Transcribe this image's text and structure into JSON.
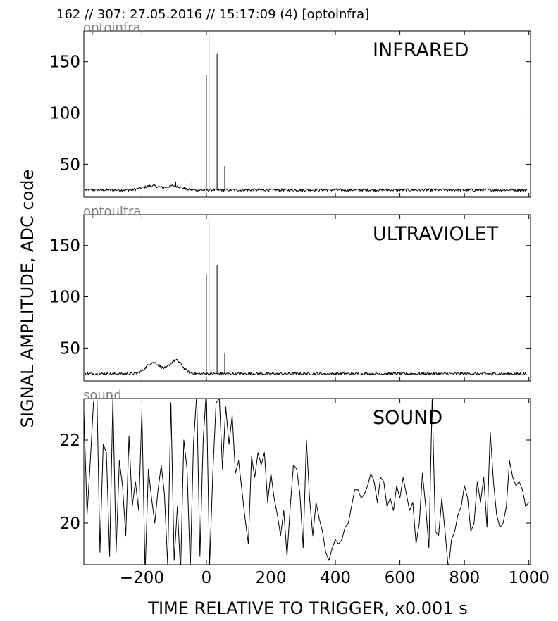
{
  "header": {
    "text": "162 // 307:   27.05.2016 // 15:17:09 (4)  [optoinfra]"
  },
  "colors": {
    "trace": "#000000",
    "panel_tag": "#808080",
    "frame": "#000000"
  },
  "chart_data": {
    "type": "line",
    "xlabel": "TIME RELATIVE TO TRIGGER,   x0.001 s",
    "ylabel": "SIGNAL AMPLITUDE,  ADC code",
    "xlim": [
      -380,
      1005
    ],
    "xticks": [
      -200,
      0,
      200,
      400,
      600,
      800,
      1000
    ],
    "xtick_labels": [
      "−200",
      "0",
      "200",
      "400",
      "600",
      "800",
      "1000"
    ],
    "grid": false,
    "panels": [
      {
        "tag": "optoinfra",
        "title": "INFRARED",
        "ylim": [
          18,
          180
        ],
        "yticks": [
          50,
          100,
          150
        ],
        "ytick_labels": [
          "50",
          "100",
          "150"
        ],
        "baseline": 25,
        "noise": 1.3,
        "bumps": [
          {
            "center": -170,
            "width": 35,
            "height": 4
          },
          {
            "center": -100,
            "width": 30,
            "height": 4
          }
        ],
        "spikes": [
          {
            "x": -95,
            "y": 33
          },
          {
            "x": -60,
            "y": 33
          },
          {
            "x": -45,
            "y": 33
          },
          {
            "x": 0,
            "y": 137
          },
          {
            "x": 8,
            "y": 177
          },
          {
            "x": 33,
            "y": 158
          },
          {
            "x": 57,
            "y": 48
          }
        ]
      },
      {
        "tag": "optoultra",
        "title": "ULTRAVIOLET",
        "ylim": [
          18,
          180
        ],
        "yticks": [
          50,
          100,
          150
        ],
        "ytick_labels": [
          "50",
          "100",
          "150"
        ],
        "baseline": 25,
        "noise": 1.3,
        "bumps": [
          {
            "center": -165,
            "width": 30,
            "height": 11
          },
          {
            "center": -95,
            "width": 28,
            "height": 13
          }
        ],
        "spikes": [
          {
            "x": 0,
            "y": 122
          },
          {
            "x": 8,
            "y": 175
          },
          {
            "x": 33,
            "y": 131
          },
          {
            "x": 57,
            "y": 45
          }
        ]
      },
      {
        "tag": "sound",
        "title": "SOUND",
        "ylim": [
          19,
          23
        ],
        "yticks": [
          20,
          22
        ],
        "ytick_labels": [
          "20",
          "22"
        ],
        "x": [
          -380,
          -370,
          -360,
          -350,
          -340,
          -330,
          -320,
          -310,
          -300,
          -290,
          -280,
          -270,
          -260,
          -250,
          -240,
          -230,
          -220,
          -210,
          -200,
          -190,
          -180,
          -170,
          -160,
          -150,
          -140,
          -130,
          -120,
          -110,
          -100,
          -90,
          -80,
          -70,
          -60,
          -50,
          -40,
          -30,
          -20,
          -10,
          0,
          10,
          20,
          30,
          40,
          50,
          60,
          70,
          80,
          90,
          100,
          110,
          120,
          130,
          140,
          150,
          160,
          170,
          180,
          190,
          200,
          210,
          220,
          230,
          240,
          250,
          260,
          270,
          280,
          290,
          300,
          310,
          320,
          330,
          340,
          350,
          360,
          370,
          380,
          390,
          400,
          410,
          420,
          430,
          440,
          450,
          460,
          470,
          480,
          490,
          500,
          510,
          520,
          530,
          540,
          550,
          560,
          570,
          580,
          590,
          600,
          610,
          620,
          630,
          640,
          650,
          660,
          670,
          680,
          690,
          700,
          710,
          720,
          730,
          740,
          750,
          760,
          770,
          780,
          790,
          800,
          810,
          820,
          830,
          840,
          850,
          860,
          870,
          880,
          890,
          900,
          910,
          920,
          930,
          940,
          950,
          960,
          970,
          980,
          990,
          1000
        ],
        "y": [
          22.7,
          20.2,
          21.5,
          22.9,
          23.3,
          19.3,
          21.9,
          21.7,
          19.2,
          23.0,
          19.3,
          21.5,
          20.9,
          19.7,
          22.1,
          20.4,
          21.0,
          20.3,
          22.7,
          18.8,
          21.3,
          20.6,
          20.0,
          20.8,
          21.4,
          20.7,
          19.0,
          22.9,
          19.1,
          20.4,
          18.8,
          22.0,
          21.3,
          18.9,
          21.9,
          23.1,
          19.2,
          22.0,
          23.2,
          19.0,
          21.2,
          22.9,
          23.0,
          21.3,
          22.8,
          21.9,
          22.6,
          21.2,
          21.5,
          20.8,
          20.1,
          19.5,
          21.6,
          21.1,
          21.7,
          21.4,
          21.7,
          20.5,
          21.2,
          20.6,
          20.2,
          19.7,
          20.3,
          19.2,
          20.4,
          21.4,
          21.3,
          20.7,
          19.4,
          22.0,
          20.6,
          19.7,
          20.5,
          20.1,
          19.8,
          19.3,
          19.1,
          19.4,
          19.6,
          19.5,
          19.6,
          19.9,
          20.0,
          20.4,
          20.8,
          20.8,
          20.6,
          20.7,
          20.9,
          21.2,
          21.0,
          20.5,
          21.1,
          21.0,
          20.4,
          20.6,
          20.3,
          20.9,
          20.6,
          21.1,
          20.7,
          20.3,
          20.5,
          19.5,
          20.0,
          21.2,
          20.4,
          19.4,
          23.0,
          19.8,
          19.7,
          20.6,
          19.8,
          18.9,
          19.6,
          19.8,
          20.2,
          20.4,
          20.9,
          20.6,
          19.8,
          20.0,
          21.0,
          20.5,
          21.1,
          19.9,
          22.2,
          21.0,
          20.2,
          19.9,
          20.0,
          20.4,
          21.5,
          21.1,
          20.9,
          21.0,
          20.8,
          20.4,
          20.5
        ]
      }
    ]
  }
}
